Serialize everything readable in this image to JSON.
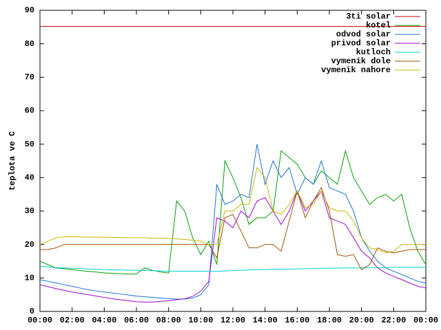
{
  "chart_data": {
    "type": "line",
    "y_label": "teplota ve C",
    "x": [
      0,
      0.5,
      1,
      1.5,
      2,
      2.5,
      3,
      3.5,
      4,
      4.5,
      5,
      5.5,
      6,
      6.5,
      7,
      7.5,
      8,
      8.5,
      9,
      9.5,
      10,
      10.5,
      11,
      11.5,
      12,
      12.5,
      13,
      13.5,
      14,
      14.5,
      15,
      15.5,
      16,
      16.5,
      17,
      17.5,
      18,
      18.5,
      19,
      19.5,
      20,
      20.5,
      21,
      21.5,
      22,
      22.5,
      23,
      23.5,
      24
    ],
    "xlim": [
      0,
      24
    ],
    "xticks": [
      {
        "value": 0,
        "label": "00:00"
      },
      {
        "value": 2,
        "label": "02:00"
      },
      {
        "value": 4,
        "label": "04:00"
      },
      {
        "value": 6,
        "label": "06:00"
      },
      {
        "value": 8,
        "label": "08:00"
      },
      {
        "value": 10,
        "label": "10:00"
      },
      {
        "value": 12,
        "label": "12:00"
      },
      {
        "value": 14,
        "label": "14:00"
      },
      {
        "value": 16,
        "label": "16:00"
      },
      {
        "value": 18,
        "label": "18:00"
      },
      {
        "value": 20,
        "label": "20:00"
      },
      {
        "value": 22,
        "label": "22:00"
      },
      {
        "value": 24,
        "label": "00:00"
      }
    ],
    "ylim": [
      0,
      90
    ],
    "yticks": [
      0,
      10,
      20,
      30,
      40,
      50,
      60,
      70,
      80,
      90
    ],
    "legend": "top-right",
    "series": [
      {
        "name": "3ti solar",
        "color": "#cc0000",
        "values": [
          85.2,
          85.2,
          85.2,
          85.2,
          85.2,
          85.2,
          85.2,
          85.2,
          85.2,
          85.2,
          85.2,
          85.2,
          85.2,
          85.2,
          85.2,
          85.2,
          85.2,
          85.2,
          85.2,
          85.2,
          85.2,
          85.2,
          85.2,
          85.2,
          85.2,
          85.2,
          85.2,
          85.2,
          85.2,
          85.2,
          85.2,
          85.2,
          85.2,
          85.2,
          85.2,
          85.2,
          85.2,
          85.2,
          85.2,
          85.2,
          85.2,
          85.2,
          85.2,
          85.2,
          85.2,
          85.2,
          85.2,
          85.2,
          85.2
        ]
      },
      {
        "name": "kotel",
        "color": "#00a000",
        "values": [
          15,
          14,
          13,
          12.8,
          12.5,
          12.2,
          12,
          11.8,
          11.5,
          11.4,
          11.3,
          11.2,
          11.2,
          13,
          12.3,
          11.8,
          11.5,
          33,
          30,
          22,
          17,
          21,
          14,
          45,
          40,
          34,
          26,
          28,
          28,
          30,
          48,
          46,
          44,
          40,
          38,
          42,
          40,
          38,
          48,
          40,
          36,
          32,
          34,
          35,
          33,
          35,
          25,
          18,
          14
        ]
      },
      {
        "name": "odvod solar",
        "color": "#1a70d0",
        "values": [
          9.5,
          9,
          8.5,
          8,
          7.5,
          7,
          6.5,
          6.1,
          5.8,
          5.5,
          5.2,
          4.9,
          4.6,
          4.4,
          4.2,
          4,
          3.8,
          3.7,
          3.7,
          4,
          5,
          8,
          38,
          32,
          33,
          35,
          34,
          50,
          38,
          45,
          40,
          43,
          35,
          40,
          38,
          45,
          37,
          36,
          35,
          30,
          22,
          18,
          15,
          13,
          12,
          11,
          10,
          9,
          8.5
        ]
      },
      {
        "name": "privod solar",
        "color": "#a000d0",
        "values": [
          8,
          7.4,
          6.8,
          6.3,
          5.8,
          5.4,
          5,
          4.6,
          4.2,
          3.8,
          3.5,
          3.2,
          2.9,
          2.8,
          2.8,
          3,
          3.2,
          3.5,
          3.8,
          4.5,
          6,
          9,
          28,
          27,
          25,
          30,
          28,
          33,
          34,
          30,
          26,
          30,
          36,
          30,
          33,
          36,
          28,
          27,
          26,
          22,
          18,
          16,
          13,
          11.5,
          10.5,
          9.5,
          8.5,
          7.5,
          7
        ]
      },
      {
        "name": "kutloch",
        "color": "#00d0d0",
        "values": [
          13.5,
          13.3,
          13.1,
          13,
          12.9,
          12.8,
          12.7,
          12.6,
          12.5,
          12.4,
          12.4,
          12.3,
          12.3,
          12.2,
          12.2,
          12.1,
          12,
          12,
          12,
          12,
          12,
          12,
          12,
          12.1,
          12.2,
          12.3,
          12.4,
          12.5,
          12.5,
          12.6,
          12.6,
          12.7,
          12.7,
          12.8,
          12.8,
          12.9,
          12.9,
          13,
          13,
          13,
          13,
          13.1,
          13.1,
          13.1,
          13.2,
          13.2,
          13.2,
          13.2,
          13.2
        ]
      },
      {
        "name": "vymenik dole",
        "color": "#a05000",
        "values": [
          18.5,
          18.5,
          19,
          20,
          20,
          20,
          20,
          20,
          20,
          20,
          20,
          20,
          20,
          20,
          20,
          20,
          20,
          20,
          20,
          20,
          20,
          20,
          16,
          28,
          29,
          24,
          19,
          19,
          20,
          20,
          18,
          27,
          36,
          28,
          33,
          37,
          30,
          17,
          16.5,
          17,
          12.5,
          14,
          19,
          18,
          17.5,
          18,
          18.5,
          18.5,
          18.5
        ]
      },
      {
        "name": "vymenik nahore",
        "color": "#c8b400",
        "values": [
          20,
          21,
          22,
          22.3,
          22.3,
          22.3,
          22.2,
          22.2,
          22.2,
          22.1,
          22.1,
          22,
          22,
          22,
          21.9,
          21.9,
          21.8,
          21.7,
          21.5,
          21.3,
          21,
          20,
          20,
          30,
          30,
          32,
          32,
          43,
          40,
          30,
          29,
          32,
          36,
          31,
          32,
          36,
          31,
          30,
          30,
          27,
          22,
          19,
          18.5,
          17.5,
          18,
          20,
          20,
          20,
          20
        ]
      }
    ]
  }
}
